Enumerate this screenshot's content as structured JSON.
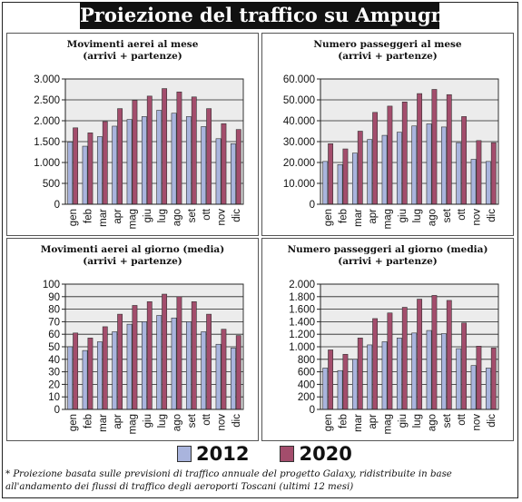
{
  "header": {
    "title": "Proiezione del traffico su Ampugnano",
    "title_mark": "*"
  },
  "colors": {
    "series_2012": "#a9b4dd",
    "series_2020": "#a34d6c",
    "plot_bg": "#ececec",
    "grid": "#222222"
  },
  "legend": [
    {
      "label": "2012"
    },
    {
      "label": "2020"
    }
  ],
  "footnote": "* Proiezione basata sulle previsioni di traffico annuale del progetto Galaxy, ridistribuite in base all'andamento dei flussi di traffico degli aeroporti Toscani (ultimi 12 mesi)",
  "chart_data": [
    {
      "type": "bar",
      "title_lines": [
        "Movimenti aerei al mese",
        "(arrivi + partenze)"
      ],
      "categories": [
        "gen",
        "feb",
        "mar",
        "apr",
        "mag",
        "giu",
        "lug",
        "ago",
        "set",
        "ott",
        "nov",
        "dic"
      ],
      "ylim": [
        0,
        3000
      ],
      "yticks": [
        0,
        500,
        1000,
        1500,
        2000,
        2500,
        3000
      ],
      "ytick_labels": [
        "0",
        "500",
        "1.000",
        "1.500",
        "2.000",
        "2.500",
        "3.000"
      ],
      "series": [
        {
          "name": "2012",
          "values": [
            1490,
            1390,
            1620,
            1870,
            2030,
            2100,
            2250,
            2180,
            2100,
            1860,
            1570,
            1450
          ]
        },
        {
          "name": "2020",
          "values": [
            1830,
            1710,
            1980,
            2290,
            2490,
            2590,
            2770,
            2690,
            2570,
            2290,
            1930,
            1790
          ]
        }
      ]
    },
    {
      "type": "bar",
      "title_lines": [
        "Numero passeggeri al mese",
        "(arrivi + partenze)"
      ],
      "categories": [
        "gen",
        "feb",
        "mar",
        "apr",
        "mag",
        "giu",
        "lug",
        "ago",
        "set",
        "ott",
        "nov",
        "dic"
      ],
      "ylim": [
        0,
        60000
      ],
      "yticks": [
        0,
        10000,
        20000,
        30000,
        40000,
        50000,
        60000
      ],
      "ytick_labels": [
        "0",
        "10.000",
        "20.000",
        "30.000",
        "40.000",
        "50.000",
        "60.000"
      ],
      "series": [
        {
          "name": "2012",
          "values": [
            20500,
            19000,
            24500,
            31000,
            33000,
            34500,
            37500,
            38500,
            37000,
            29500,
            21500,
            20500
          ]
        },
        {
          "name": "2020",
          "values": [
            29000,
            26500,
            35000,
            44000,
            47000,
            49000,
            53000,
            55000,
            52500,
            42000,
            30500,
            29500
          ]
        }
      ]
    },
    {
      "type": "bar",
      "title_lines": [
        "Movimenti aerei al giorno (media)",
        "(arrivi + partenze)"
      ],
      "categories": [
        "gen",
        "feb",
        "mar",
        "apr",
        "mag",
        "giu",
        "lug",
        "ago",
        "set",
        "ott",
        "nov",
        "dic"
      ],
      "ylim": [
        0,
        100
      ],
      "yticks": [
        0,
        10,
        20,
        30,
        40,
        50,
        60,
        70,
        80,
        90,
        100
      ],
      "ytick_labels": [
        "0",
        "10",
        "20",
        "30",
        "40",
        "50",
        "60",
        "70",
        "80",
        "90",
        "100"
      ],
      "series": [
        {
          "name": "2012",
          "values": [
            50,
            47,
            54,
            62,
            68,
            70,
            75,
            73,
            70,
            62,
            52,
            49
          ]
        },
        {
          "name": "2020",
          "values": [
            61,
            57,
            66,
            76,
            83,
            86,
            92,
            90,
            86,
            76,
            64,
            59
          ]
        }
      ]
    },
    {
      "type": "bar",
      "title_lines": [
        "Numero passeggeri al giorno (media)",
        "(arrivi + partenze)"
      ],
      "categories": [
        "gen",
        "feb",
        "mar",
        "apr",
        "mag",
        "giu",
        "lug",
        "ago",
        "set",
        "ott",
        "nov",
        "dic"
      ],
      "ylim": [
        0,
        2000
      ],
      "yticks": [
        0,
        200,
        400,
        600,
        800,
        1000,
        1200,
        1400,
        1600,
        1800,
        2000
      ],
      "ytick_labels": [
        "0",
        "200",
        "400",
        "600",
        "800",
        "1.000",
        "1.200",
        "1.400",
        "1.600",
        "1.800",
        "2.000"
      ],
      "series": [
        {
          "name": "2012",
          "values": [
            660,
            620,
            800,
            1030,
            1080,
            1140,
            1220,
            1260,
            1210,
            970,
            700,
            660
          ]
        },
        {
          "name": "2020",
          "values": [
            950,
            880,
            1140,
            1450,
            1540,
            1630,
            1760,
            1820,
            1740,
            1380,
            1010,
            980
          ]
        }
      ]
    }
  ]
}
